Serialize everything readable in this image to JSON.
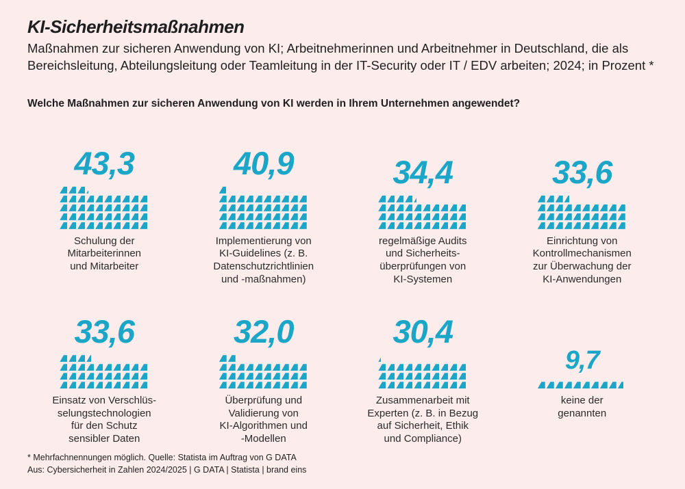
{
  "page": {
    "title": "KI-Sicherheitsmaßnahmen",
    "subtitle": "Maßnahmen zur sicheren Anwendung von KI; Arbeitnehmerinnen und Arbeitnehmer in Deutschland, die als Bereichsleitung, Abteilungsleitung oder Teamleitung in der IT-Security oder IT / EDV arbeiten; 2024; in Prozent *",
    "question": "Welche Maßnahmen zur sicheren Anwendung von KI werden in Ihrem Unternehmen angewendet?",
    "footnote_line1": "* Mehrfachnennungen möglich. Quelle: Statista im Auftrag von G DATA",
    "footnote_line2": "Aus: Cybersicherheit in Zahlen 2024/2025 | G DATA | Statista | brand eins"
  },
  "colors": {
    "background": "#fcecec",
    "accent": "#1ba6c7",
    "text": "#1f1f1f"
  },
  "chart_data": {
    "type": "pictogram",
    "title": "KI-Sicherheitsmaßnahmen",
    "unit": "Prozent",
    "icon": "flag-triangle",
    "icon_value": 1,
    "icons_per_row": 10,
    "accent_color": "#1ba6c7",
    "categories": [
      "Schulung der Mitarbeiterinnen und Mitarbeiter",
      "Implementierung von KI-Guidelines (z. B. Datenschutzrichtlinien und -maßnahmen)",
      "regelmäßige Audits und Sicherheits­überprüfungen von KI-Systemen",
      "Einrichtung von Kontrollmechanismen zur Überwachung der KI-Anwendungen",
      "Einsatz von Verschlüsselungstechnologien für den Schutz sensibler Daten",
      "Überprüfung und Validierung von KI-Algorithmen und -Modellen",
      "Zusammenarbeit mit Experten (z. B. in Bezug auf Sicherheit, Ethik und Compliance)",
      "keine der genannten"
    ],
    "values": [
      43.3,
      40.9,
      34.4,
      33.6,
      33.6,
      32.0,
      30.4,
      9.7
    ],
    "value_labels": [
      "43,3",
      "40,9",
      "34,4",
      "33,6",
      "33,6",
      "32,0",
      "30,4",
      "9,7"
    ],
    "label_lines": [
      [
        "Schulung der",
        "Mitarbeiterinnen",
        "und Mitarbeiter"
      ],
      [
        "Implementierung von",
        "KI-Guidelines (z. B.",
        "Datenschutzrichtlinien",
        "und -maßnahmen)"
      ],
      [
        "regelmäßige Audits",
        "und Sicherheits-",
        "überprüfungen von",
        "KI-Systemen"
      ],
      [
        "Einrichtung von",
        "Kontrollmechanismen",
        "zur Überwachung der",
        "KI-Anwendungen"
      ],
      [
        "Einsatz von Verschlüs-",
        "selungstechnologien",
        "für den Schutz",
        "sensibler Daten"
      ],
      [
        "Überprüfung und",
        "Validierung von",
        "KI-Algorithmen und",
        "-Modellen"
      ],
      [
        "Zusammenarbeit mit",
        "Experten (z. B. in Bezug",
        "auf Sicherheit, Ethik",
        "und Compliance)"
      ],
      [
        "keine der",
        "genannten"
      ]
    ],
    "small_value_index": 7
  }
}
